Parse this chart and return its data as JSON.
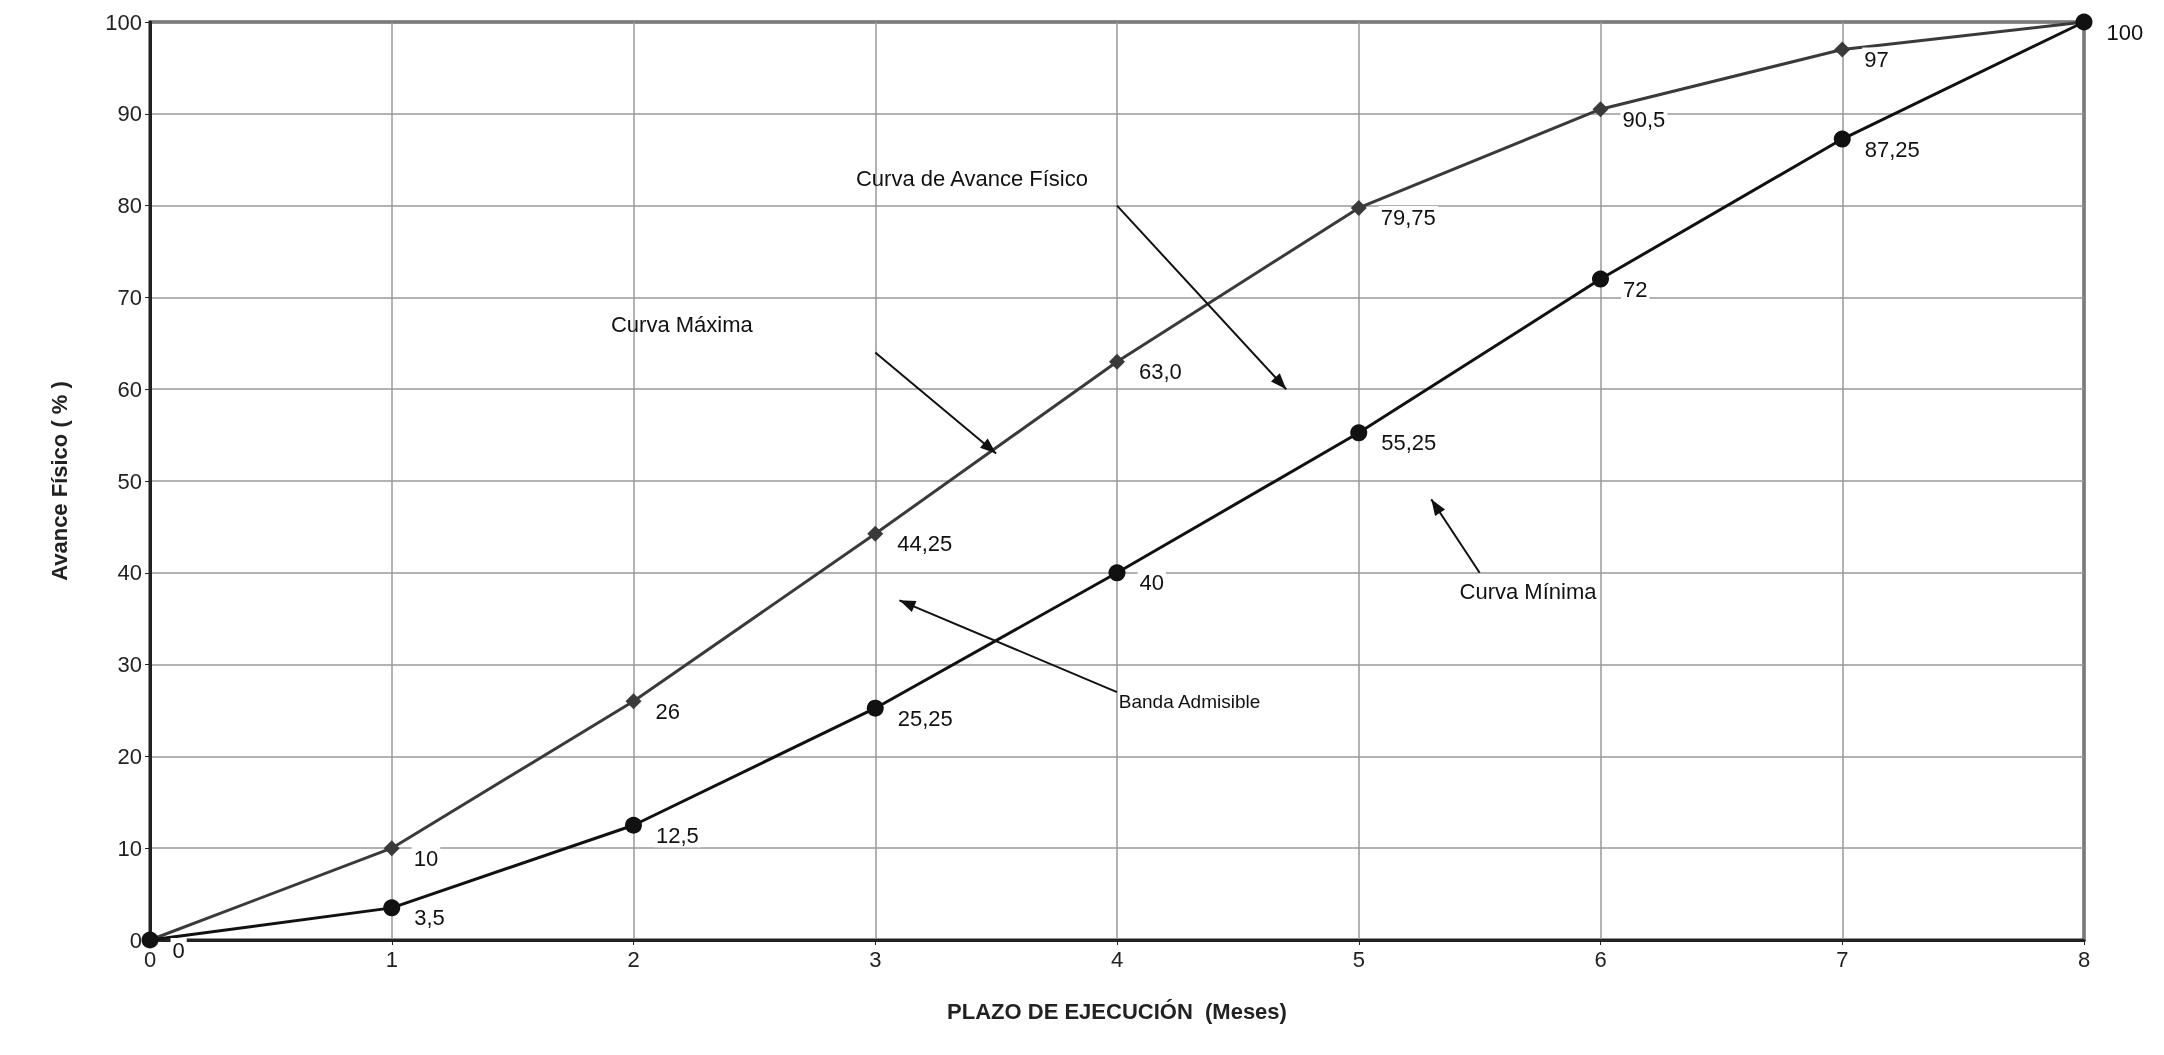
{
  "chart_data": {
    "type": "line",
    "xlabel": "PLAZO DE EJECUCIÓN  (Meses)",
    "ylabel": "Avance Físico ( % )",
    "x": [
      0,
      1,
      2,
      3,
      4,
      5,
      6,
      7,
      8
    ],
    "series": [
      {
        "color": "#3a3a3a",
        "marker": "diamond",
        "values": [
          0,
          10,
          26,
          44.25,
          63.0,
          79.75,
          90.5,
          97,
          100
        ],
        "value_labels": [
          null,
          "10",
          "26",
          "44,25",
          "63,0",
          "79,75",
          "90,5",
          "97",
          null
        ]
      },
      {
        "color": "#111111",
        "marker": "circle",
        "values": [
          0,
          3.5,
          12.5,
          25.25,
          40,
          55.25,
          72,
          87.25,
          100
        ],
        "value_labels": [
          "0",
          "3,5",
          "12,5",
          "25,25",
          "40",
          "55,25",
          "72",
          "87,25",
          "100"
        ]
      }
    ],
    "annotations": [
      "Curva de Avance Físico",
      "Curva Máxima",
      "Curva Mínima",
      "Banda Admisible"
    ],
    "xlim": [
      0,
      8
    ],
    "xticks": [
      0,
      1,
      2,
      3,
      4,
      5,
      6,
      7,
      8
    ],
    "ylim": [
      0,
      100
    ],
    "yticks": [
      0,
      10,
      20,
      30,
      40,
      50,
      60,
      70,
      80,
      90,
      100
    ],
    "grid": true
  }
}
